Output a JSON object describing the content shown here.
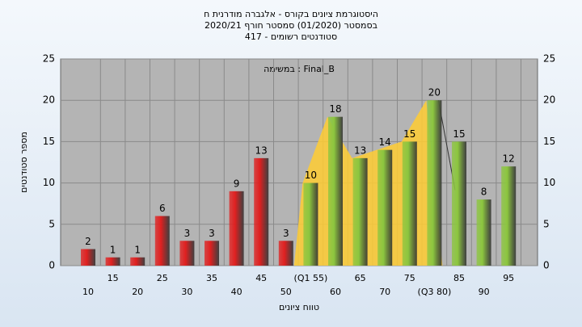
{
  "chart_data": {
    "type": "bar",
    "title": "היסטוגרמת ציונים בקורס - אלגברה מודרנית ח",
    "subtitle": [
      "בסמסטר (01/2020) סמסטר חורף 2020/21",
      "סטודנטים רשומים - 417"
    ],
    "annotation": "במשימה : Final_B",
    "x_label": "טווח ציונים",
    "y_label": "מספר סטודנטים",
    "categories": [
      "10",
      "15",
      "20",
      "25",
      "30",
      "35",
      "40",
      "45",
      "50",
      "(Q1 55)",
      "60",
      "65",
      "70",
      "75",
      "(Q3 80)",
      "85",
      "90",
      "95"
    ],
    "values": [
      2,
      1,
      1,
      6,
      3,
      3,
      9,
      13,
      3,
      10,
      18,
      13,
      14,
      15,
      20,
      15,
      8,
      12
    ],
    "colors": [
      "#e02020",
      "#e02020",
      "#e02020",
      "#e02020",
      "#e02020",
      "#e02020",
      "#e02020",
      "#e02020",
      "#e02020",
      "#8cc63f",
      "#8cc63f",
      "#8cc63f",
      "#8cc63f",
      "#8cc63f",
      "#8cc63f",
      "#8cc63f",
      "#8cc63f",
      "#8cc63f"
    ],
    "ylim": [
      0,
      25
    ],
    "yticks": [
      0,
      5,
      10,
      15,
      20,
      25
    ],
    "y2lim": [
      0,
      25
    ],
    "y2ticks": [
      0,
      5,
      10,
      15,
      20,
      25
    ],
    "grid": true
  }
}
